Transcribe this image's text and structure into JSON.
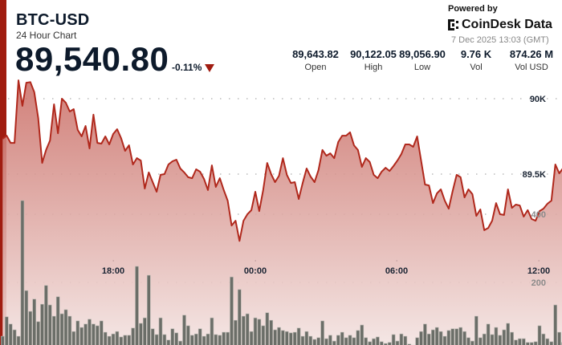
{
  "header": {
    "title": "BTC-USD",
    "subtitle": "24 Hour Chart",
    "price": "89,540.80",
    "change": "-0.11%",
    "change_direction": "down",
    "change_color": "#a01c10"
  },
  "stats": [
    {
      "value": "89,643.82",
      "label": "Open"
    },
    {
      "value": "90,122.05",
      "label": "High"
    },
    {
      "value": "89,056.90",
      "label": "Low"
    },
    {
      "value": "9.76 K",
      "label": "Vol"
    },
    {
      "value": "874.26 M",
      "label": "Vol USD"
    }
  ],
  "branding": {
    "powered_by": "Powered by",
    "logo_text": "CoinDesk Data",
    "timestamp": "7 Dec 2025 13:03 (GMT)"
  },
  "colors": {
    "accent": "#a01c10",
    "line": "#b0281c",
    "volume_bar": "#6b6e68"
  },
  "chart_data": {
    "type": "line",
    "grid": "dotted horizontal",
    "x_ticks": [
      "18:00",
      "00:00",
      "06:00",
      "12:00"
    ],
    "price_axis": {
      "ticks": [
        {
          "value": 90000,
          "label": "90K"
        },
        {
          "value": 89500,
          "label": "89.5K"
        }
      ],
      "position": "right"
    },
    "volume_axis": {
      "ticks": [
        {
          "value": 400,
          "label": "400"
        },
        {
          "value": 200,
          "label": "200"
        }
      ],
      "position": "right"
    },
    "times": [
      "13:20",
      "13:30",
      "13:40",
      "13:50",
      "14:00",
      "14:10",
      "14:20",
      "14:30",
      "14:40",
      "14:50",
      "15:00",
      "15:10",
      "15:20",
      "15:30",
      "15:40",
      "15:50",
      "16:00",
      "16:10",
      "16:20",
      "16:30",
      "16:40",
      "16:50",
      "17:00",
      "17:10",
      "17:20",
      "17:30",
      "17:40",
      "17:50",
      "18:00",
      "18:10",
      "18:20",
      "18:30",
      "18:40",
      "18:50",
      "19:00",
      "19:10",
      "19:20",
      "19:30",
      "19:40",
      "19:50",
      "20:00",
      "20:10",
      "20:20",
      "20:30",
      "20:40",
      "20:50",
      "21:00",
      "21:10",
      "21:20",
      "21:30",
      "21:40",
      "21:50",
      "22:00",
      "22:10",
      "22:20",
      "22:30",
      "22:40",
      "22:50",
      "23:00",
      "23:10",
      "23:20",
      "23:30",
      "23:40",
      "23:50",
      "00:00",
      "00:10",
      "00:20",
      "00:30",
      "00:40",
      "00:50",
      "01:00",
      "01:10",
      "01:20",
      "01:30",
      "01:40",
      "01:50",
      "02:00",
      "02:10",
      "02:20",
      "02:30",
      "02:40",
      "02:50",
      "03:00",
      "03:10",
      "03:20",
      "03:30",
      "03:40",
      "03:50",
      "04:00",
      "04:10",
      "04:20",
      "04:30",
      "04:40",
      "04:50",
      "05:00",
      "05:10",
      "05:20",
      "05:30",
      "05:40",
      "05:50",
      "06:00",
      "06:10",
      "06:20",
      "06:30",
      "06:40",
      "06:50",
      "07:00",
      "07:10",
      "07:20",
      "07:30",
      "07:40",
      "07:50",
      "08:00",
      "08:10",
      "08:20",
      "08:30",
      "08:40",
      "08:50",
      "09:00",
      "09:10",
      "09:20",
      "09:30",
      "09:40",
      "09:50",
      "10:00",
      "10:10",
      "10:20",
      "10:30",
      "10:40",
      "10:50",
      "11:00",
      "11:10",
      "11:20",
      "11:30",
      "11:40",
      "11:50",
      "12:00",
      "12:10",
      "12:20",
      "12:30",
      "12:40",
      "12:50",
      "13:00"
    ],
    "series": [
      {
        "kind": "price",
        "type": "area-line",
        "values": [
          89734,
          89755,
          89707,
          89707,
          90122,
          89952,
          90106,
          90110,
          90043,
          89872,
          89574,
          89660,
          89723,
          89963,
          89771,
          90000,
          89973,
          89915,
          89931,
          89793,
          89750,
          89819,
          89670,
          89894,
          89707,
          89702,
          89750,
          89697,
          89766,
          89798,
          89739,
          89654,
          89691,
          89564,
          89606,
          89590,
          89404,
          89511,
          89447,
          89383,
          89495,
          89500,
          89564,
          89585,
          89596,
          89537,
          89511,
          89479,
          89473,
          89532,
          89516,
          89468,
          89394,
          89558,
          89415,
          89473,
          89394,
          89324,
          89159,
          89191,
          89057,
          89191,
          89234,
          89261,
          89383,
          89255,
          89394,
          89574,
          89500,
          89447,
          89489,
          89606,
          89495,
          89441,
          89447,
          89335,
          89441,
          89537,
          89484,
          89447,
          89527,
          89660,
          89622,
          89638,
          89606,
          89713,
          89755,
          89755,
          89777,
          89691,
          89660,
          89548,
          89606,
          89580,
          89495,
          89473,
          89516,
          89542,
          89521,
          89553,
          89590,
          89633,
          89697,
          89697,
          89681,
          89750,
          89590,
          89431,
          89425,
          89308,
          89372,
          89399,
          89324,
          89271,
          89388,
          89495,
          89479,
          89346,
          89399,
          89367,
          89223,
          89266,
          89128,
          89143,
          89191,
          89308,
          89234,
          89229,
          89399,
          89276,
          89298,
          89292,
          89218,
          89261,
          89202,
          89191,
          89255,
          89271,
          89303,
          89324,
          89564,
          89505,
          89541
        ]
      },
      {
        "kind": "volume",
        "type": "bar",
        "values": [
          42,
          99,
          78,
          61,
          42,
          440,
          176,
          115,
          151,
          85,
          136,
          191,
          134,
          101,
          158,
          108,
          120,
          101,
          56,
          87,
          68,
          78,
          92,
          78,
          73,
          87,
          54,
          42,
          49,
          56,
          40,
          45,
          45,
          66,
          247,
          80,
          96,
          221,
          64,
          47,
          96,
          47,
          31,
          64,
          52,
          28,
          104,
          73,
          45,
          49,
          64,
          42,
          49,
          96,
          47,
          45,
          54,
          54,
          216,
          89,
          179,
          101,
          108,
          56,
          96,
          92,
          73,
          111,
          89,
          61,
          68,
          59,
          56,
          52,
          54,
          66,
          42,
          56,
          42,
          33,
          38,
          87,
          35,
          45,
          28,
          45,
          54,
          38,
          45,
          38,
          59,
          75,
          38,
          26,
          35,
          40,
          26,
          21,
          24,
          47,
          28,
          49,
          42,
          19,
          16,
          38,
          56,
          78,
          49,
          61,
          68,
          56,
          42,
          59,
          64,
          64,
          68,
          56,
          38,
          28,
          101,
          38,
          49,
          78,
          47,
          68,
          45,
          61,
          80,
          54,
          31,
          35,
          35,
          24,
          24,
          26,
          73,
          49,
          35,
          26,
          134,
          54,
          24
        ]
      }
    ]
  }
}
